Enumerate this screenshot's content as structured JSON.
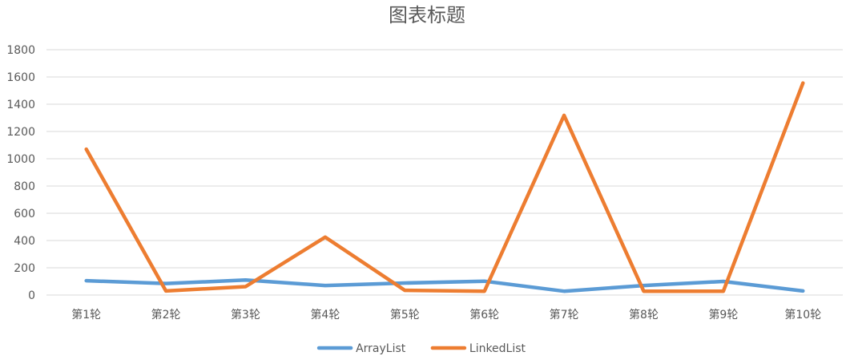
{
  "chart_data": {
    "type": "line",
    "title": "图表标题",
    "xlabel": "",
    "ylabel": "",
    "categories": [
      "第1轮",
      "第2轮",
      "第3轮",
      "第4轮",
      "第5轮",
      "第6轮",
      "第7轮",
      "第8轮",
      "第9轮",
      "第10轮"
    ],
    "ylim": [
      0,
      1800
    ],
    "yticks": [
      0,
      200,
      400,
      600,
      800,
      1000,
      1200,
      1400,
      1600,
      1800
    ],
    "grid": true,
    "legend_position": "bottom",
    "series": [
      {
        "name": "ArrayList",
        "color": "#5b9bd5",
        "values": [
          105,
          85,
          110,
          70,
          88,
          102,
          28,
          70,
          100,
          30
        ]
      },
      {
        "name": "LinkedList",
        "color": "#ed7d31",
        "values": [
          1070,
          30,
          62,
          425,
          35,
          28,
          1318,
          28,
          28,
          1555
        ]
      }
    ]
  }
}
